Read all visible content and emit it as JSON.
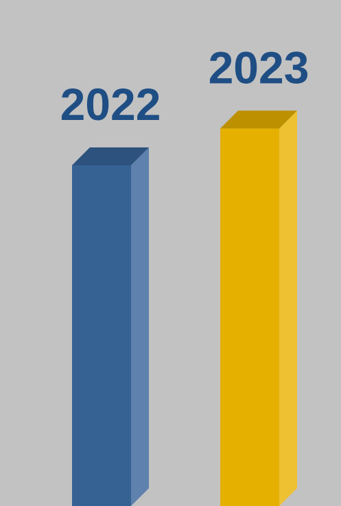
{
  "chart_data": {
    "type": "bar",
    "style": "3d-column",
    "categories": [
      "2022",
      "2023"
    ],
    "values": [
      100,
      110.8
    ],
    "title": "",
    "xlabel": "",
    "ylabel": "",
    "grid": false,
    "legend": "none"
  },
  "colors": {
    "background": "#c2c2c2",
    "label": "#1f4e85",
    "bars": [
      {
        "front": "#366293",
        "top": "#2d527d",
        "side": "#5e82ad"
      },
      {
        "front": "#e5b000",
        "top": "#bd9000",
        "side": "#edc132"
      }
    ]
  }
}
